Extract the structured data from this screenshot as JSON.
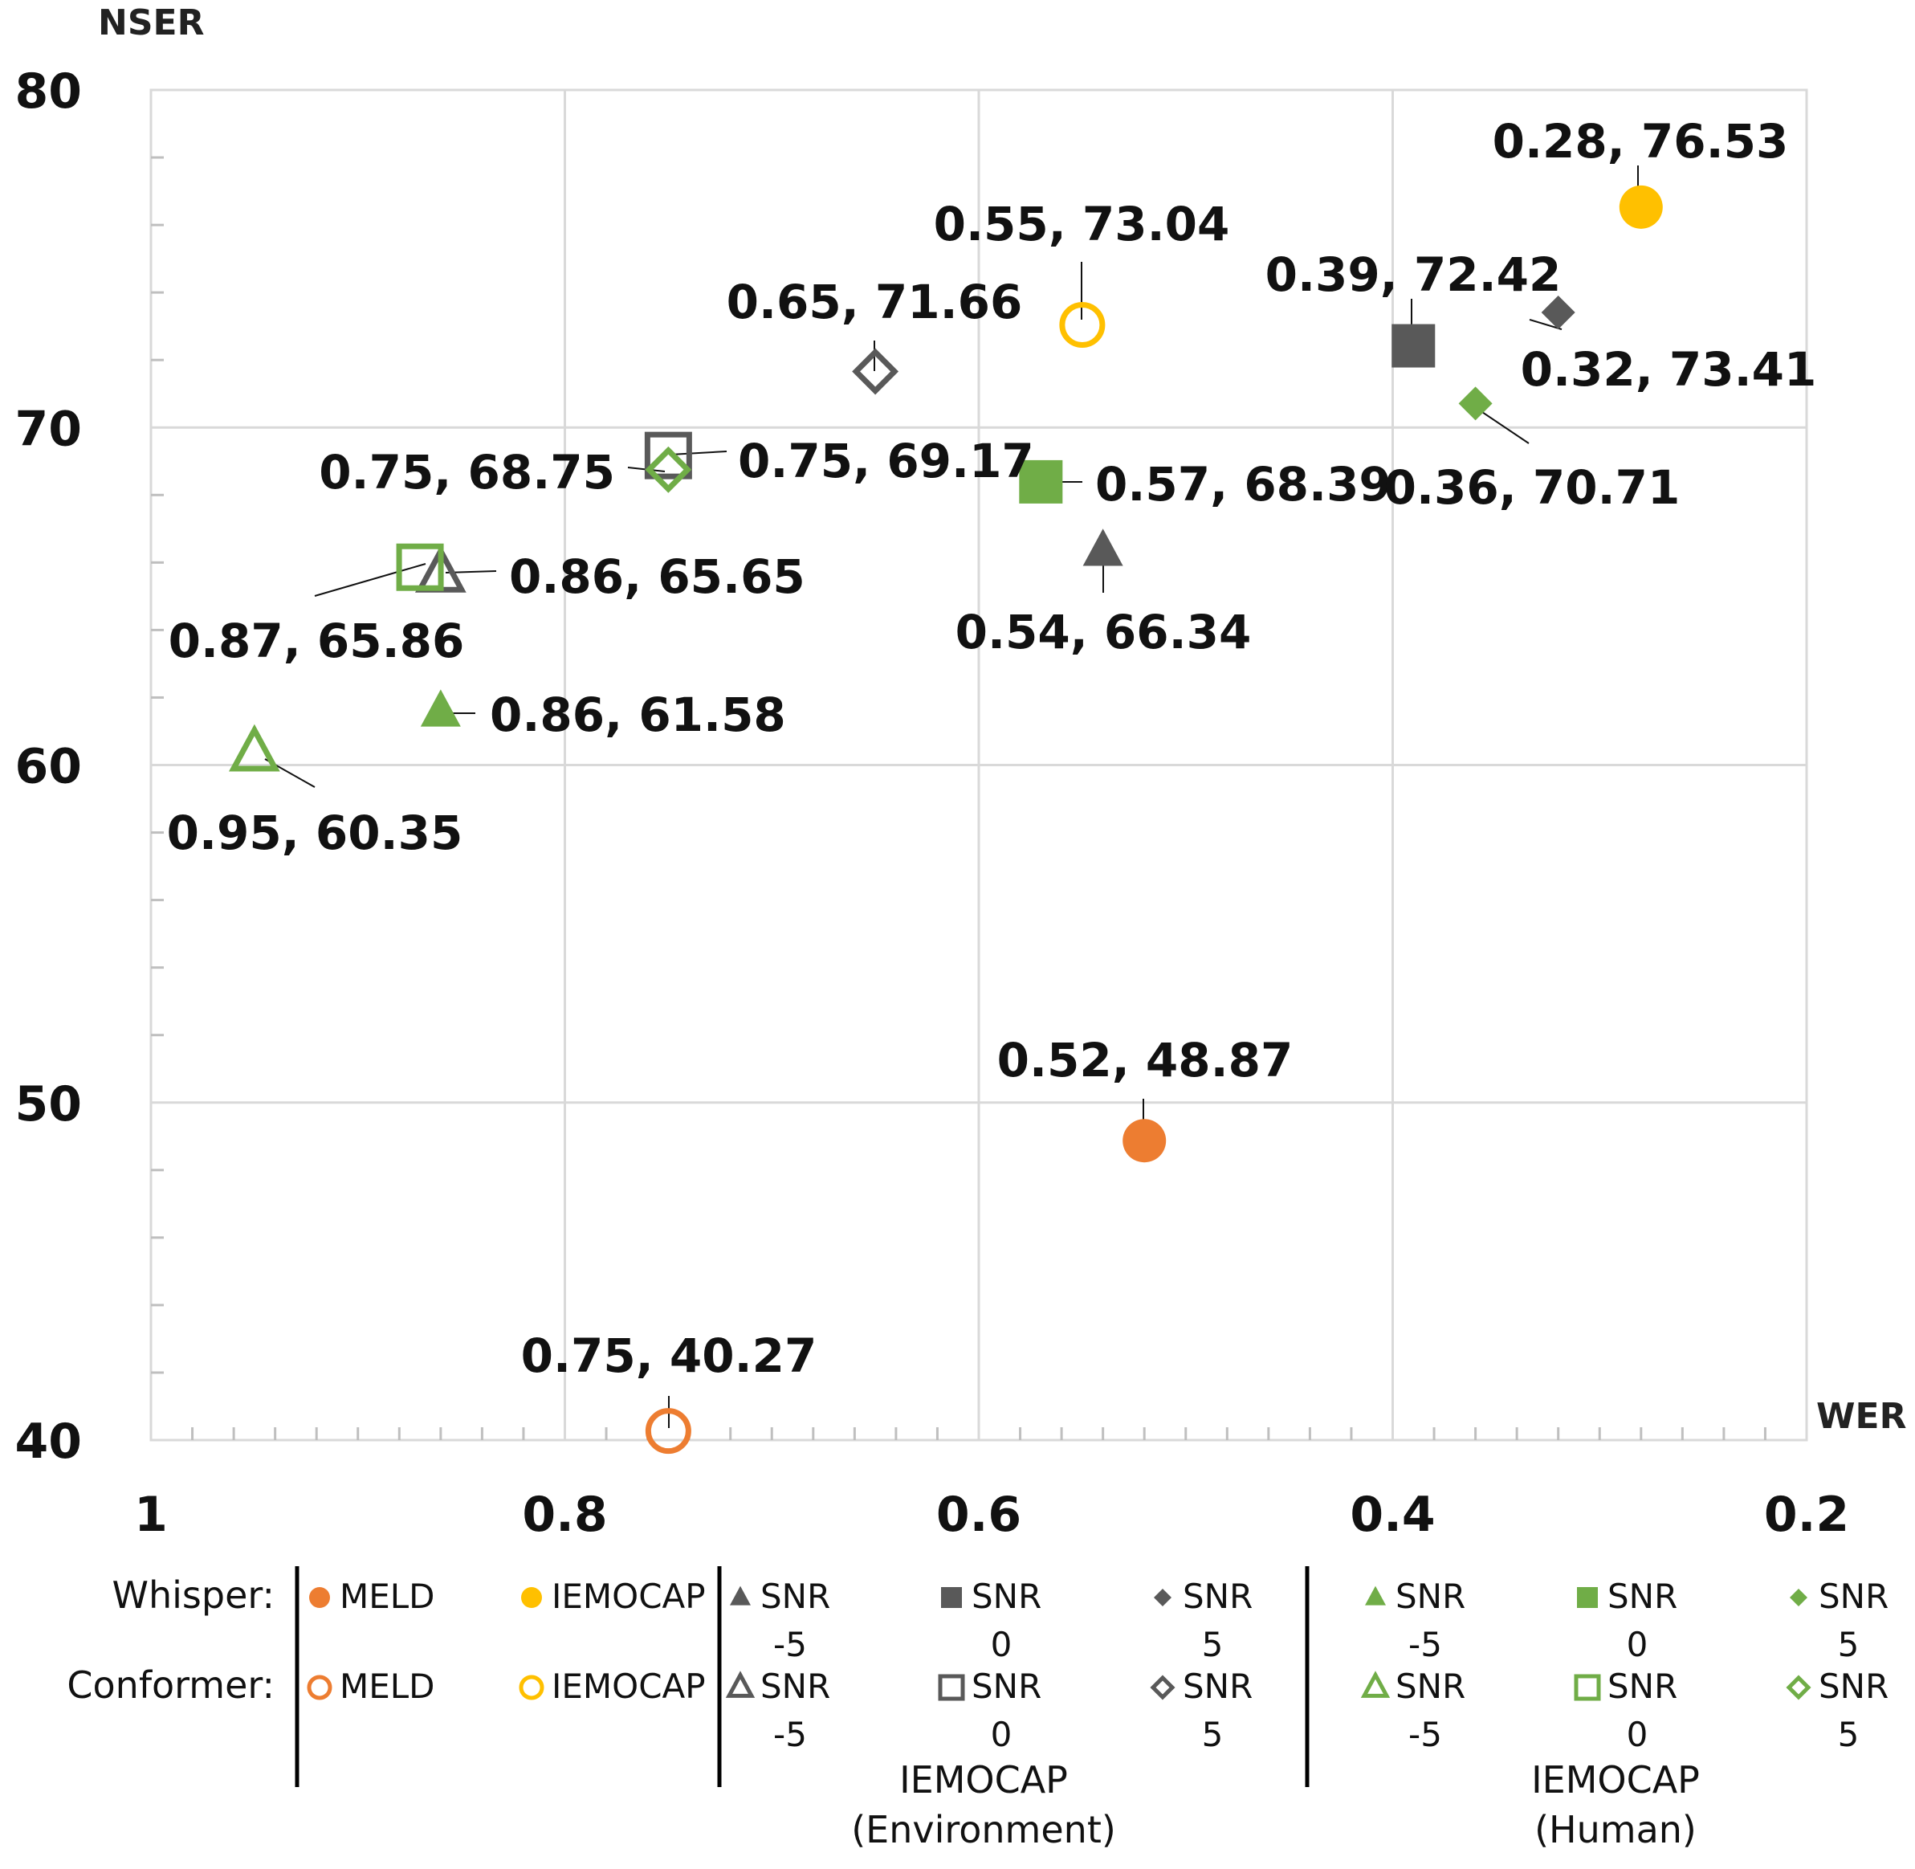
{
  "chart_data": {
    "type": "scatter",
    "xlabel": "WER",
    "ylabel": "NSER",
    "xlim": [
      1,
      0.2
    ],
    "x_reversed": true,
    "ylim": [
      40,
      80
    ],
    "x_ticks": [
      "1",
      "0.8",
      "0.6",
      "0.4",
      "0.2"
    ],
    "y_ticks": [
      "40",
      "50",
      "60",
      "70",
      "80"
    ],
    "grid": true,
    "points": [
      {
        "id": "whisper-meld",
        "model": "Whisper",
        "series": "MELD",
        "x": 0.52,
        "y": 48.87,
        "label": "0.52, 48.87",
        "shape": "circle",
        "filled": true,
        "color": "#ED7D31"
      },
      {
        "id": "whisper-iemocap",
        "model": "Whisper",
        "series": "IEMOCAP",
        "x": 0.28,
        "y": 76.53,
        "label": "0.28, 76.53",
        "shape": "circle",
        "filled": true,
        "color": "#FFC000"
      },
      {
        "id": "whisper-env-snr-5",
        "model": "Whisper",
        "series": "IEMOCAP (Environment) SNR -5",
        "x": 0.54,
        "y": 66.34,
        "label": "0.54, 66.34",
        "shape": "triangle",
        "filled": true,
        "color": "#595959"
      },
      {
        "id": "whisper-env-snr0",
        "model": "Whisper",
        "series": "IEMOCAP (Environment) SNR 0",
        "x": 0.39,
        "y": 72.42,
        "label": "0.39, 72.42",
        "shape": "square",
        "filled": true,
        "color": "#595959"
      },
      {
        "id": "whisper-env-snr5",
        "model": "Whisper",
        "series": "IEMOCAP (Environment) SNR 5",
        "x": 0.32,
        "y": 73.41,
        "label": "0.32, 73.41",
        "shape": "diamond",
        "filled": true,
        "color": "#595959"
      },
      {
        "id": "whisper-hum-snr-5",
        "model": "Whisper",
        "series": "IEMOCAP (Human) SNR -5",
        "x": 0.86,
        "y": 61.58,
        "label": "0.86, 61.58",
        "shape": "triangle",
        "filled": true,
        "color": "#70AD47"
      },
      {
        "id": "whisper-hum-snr0",
        "model": "Whisper",
        "series": "IEMOCAP (Human) SNR 0",
        "x": 0.57,
        "y": 68.39,
        "label": "0.57, 68.39",
        "shape": "square",
        "filled": true,
        "color": "#70AD47"
      },
      {
        "id": "whisper-hum-snr5",
        "model": "Whisper",
        "series": "IEMOCAP (Human) SNR 5",
        "x": 0.36,
        "y": 70.71,
        "label": "0.36, 70.71",
        "shape": "diamond",
        "filled": true,
        "color": "#70AD47"
      },
      {
        "id": "conformer-meld",
        "model": "Conformer",
        "series": "MELD",
        "x": 0.75,
        "y": 40.27,
        "label": "0.75, 40.27",
        "shape": "circle",
        "filled": false,
        "color": "#ED7D31"
      },
      {
        "id": "conformer-iemocap",
        "model": "Conformer",
        "series": "IEMOCAP",
        "x": 0.55,
        "y": 73.04,
        "label": "0.55, 73.04",
        "shape": "circle",
        "filled": false,
        "color": "#FFC000"
      },
      {
        "id": "conformer-env-snr-5",
        "model": "Conformer",
        "series": "IEMOCAP (Environment) SNR -5",
        "x": 0.86,
        "y": 65.65,
        "label": "0.86, 65.65",
        "shape": "triangle",
        "filled": false,
        "color": "#595959"
      },
      {
        "id": "conformer-env-snr0",
        "model": "Conformer",
        "series": "IEMOCAP (Environment) SNR 0",
        "x": 0.75,
        "y": 69.17,
        "label": "0.75, 69.17",
        "shape": "square",
        "filled": false,
        "color": "#595959"
      },
      {
        "id": "conformer-env-snr5",
        "model": "Conformer",
        "series": "IEMOCAP (Environment) SNR 5",
        "x": 0.65,
        "y": 71.66,
        "label": "0.65, 71.66",
        "shape": "diamond",
        "filled": false,
        "color": "#595959"
      },
      {
        "id": "conformer-hum-snr-5",
        "model": "Conformer",
        "series": "IEMOCAP (Human) SNR -5",
        "x": 0.95,
        "y": 60.35,
        "label": "0.95, 60.35",
        "shape": "triangle",
        "filled": false,
        "color": "#70AD47"
      },
      {
        "id": "conformer-hum-snr0",
        "model": "Conformer",
        "series": "IEMOCAP (Human) SNR 0",
        "x": 0.87,
        "y": 65.86,
        "label": "0.87, 65.86",
        "shape": "square",
        "filled": false,
        "color": "#70AD47"
      },
      {
        "id": "conformer-hum-snr5",
        "model": "Conformer",
        "series": "IEMOCAP (Human) SNR 5",
        "x": 0.75,
        "y": 68.75,
        "label": "0.75, 68.75",
        "shape": "diamond",
        "filled": false,
        "color": "#70AD47"
      }
    ],
    "legend": {
      "placement": "bottom",
      "rows": [
        "Whisper:",
        "Conformer:"
      ],
      "group_captions": {
        "environment": [
          "IEMOCAP",
          "(Environment)"
        ],
        "human": [
          "IEMOCAP",
          "(Human)"
        ]
      },
      "entries": [
        {
          "id": "whisper-meld",
          "row": 0,
          "text": [
            "MELD"
          ]
        },
        {
          "id": "whisper-iemocap",
          "row": 0,
          "text": [
            "IEMOCAP"
          ]
        },
        {
          "id": "whisper-env-snr-5",
          "row": 0,
          "text": [
            "SNR",
            "-5"
          ]
        },
        {
          "id": "whisper-env-snr0",
          "row": 0,
          "text": [
            "SNR",
            "0"
          ]
        },
        {
          "id": "whisper-env-snr5",
          "row": 0,
          "text": [
            "SNR",
            "5"
          ]
        },
        {
          "id": "whisper-hum-snr-5",
          "row": 0,
          "text": [
            "SNR",
            "-5"
          ]
        },
        {
          "id": "whisper-hum-snr0",
          "row": 0,
          "text": [
            "SNR",
            "0"
          ]
        },
        {
          "id": "whisper-hum-snr5",
          "row": 0,
          "text": [
            "SNR",
            "5"
          ]
        },
        {
          "id": "conformer-meld",
          "row": 1,
          "text": [
            "MELD"
          ]
        },
        {
          "id": "conformer-iemocap",
          "row": 1,
          "text": [
            "IEMOCAP"
          ]
        },
        {
          "id": "conformer-env-snr-5",
          "row": 1,
          "text": [
            "SNR",
            "-5"
          ]
        },
        {
          "id": "conformer-env-snr0",
          "row": 1,
          "text": [
            "SNR",
            "0"
          ]
        },
        {
          "id": "conformer-env-snr5",
          "row": 1,
          "text": [
            "SNR",
            "5"
          ]
        },
        {
          "id": "conformer-hum-snr-5",
          "row": 1,
          "text": [
            "SNR",
            "-5"
          ]
        },
        {
          "id": "conformer-hum-snr0",
          "row": 1,
          "text": [
            "SNR",
            "0"
          ]
        },
        {
          "id": "conformer-hum-snr5",
          "row": 1,
          "text": [
            "SNR",
            "5"
          ]
        }
      ]
    }
  }
}
